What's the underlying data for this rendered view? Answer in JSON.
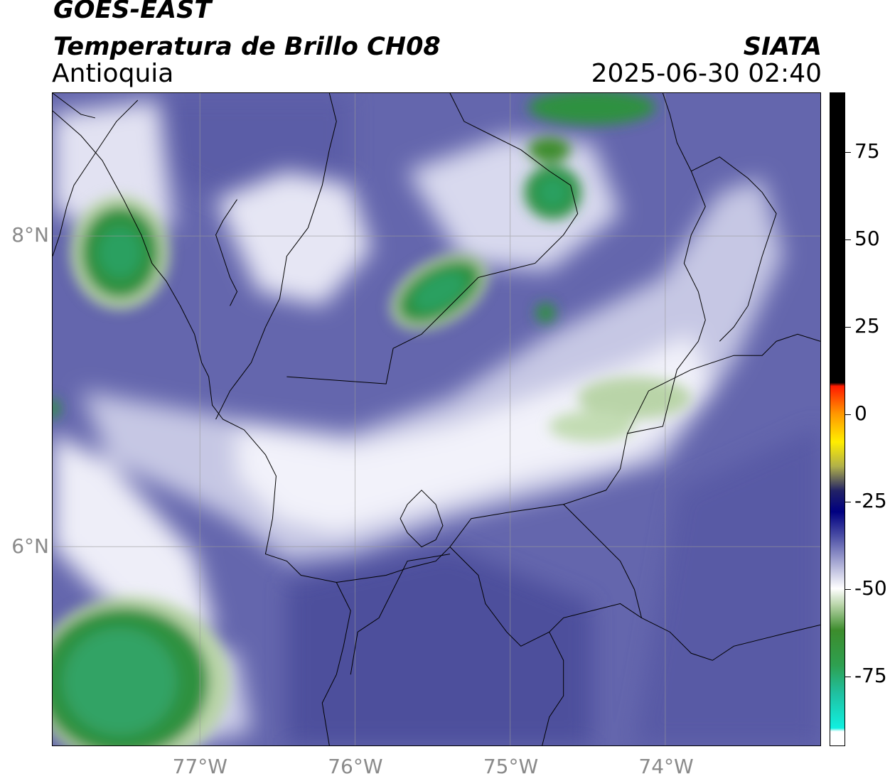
{
  "header": {
    "satellite": "GOES-EAST",
    "product": "Temperatura de Brillo CH08",
    "region": "Antioquia",
    "organization": "SIATA",
    "datetime": "2025-06-30 02:40"
  },
  "map": {
    "lon_ticks": [
      {
        "lon": -77,
        "label": "77°W"
      },
      {
        "lon": -76,
        "label": "76°W"
      },
      {
        "lon": -75,
        "label": "75°W"
      },
      {
        "lon": -74,
        "label": "74°W"
      }
    ],
    "lat_ticks": [
      {
        "lat": 8,
        "label": "8°N"
      },
      {
        "lat": 6,
        "label": "6°N"
      }
    ],
    "lon_range": [
      -77.95,
      -73.0
    ],
    "lat_range": [
      8.92,
      4.72
    ],
    "gridlines": true,
    "background_color": "#6466ad",
    "cold_cloud_color": "#2e9140"
  },
  "colorbar": {
    "range": [
      -95,
      92
    ],
    "ticks": [
      {
        "value": 75,
        "label": "75"
      },
      {
        "value": 50,
        "label": "50"
      },
      {
        "value": 25,
        "label": "25"
      },
      {
        "value": 0,
        "label": "0"
      },
      {
        "value": -25,
        "label": "-25"
      },
      {
        "value": -50,
        "label": "-50"
      },
      {
        "value": -75,
        "label": "-75"
      }
    ],
    "stops": [
      {
        "value": 92,
        "color": "#000000"
      },
      {
        "value": 9,
        "color": "#000000"
      },
      {
        "value": 8,
        "color": "#ff1a00"
      },
      {
        "value": 0,
        "color": "#ff9900"
      },
      {
        "value": -8,
        "color": "#ffee00"
      },
      {
        "value": -15,
        "color": "#b0b04a"
      },
      {
        "value": -22,
        "color": "#222266"
      },
      {
        "value": -28,
        "color": "#000080"
      },
      {
        "value": -35,
        "color": "#4b4ea5"
      },
      {
        "value": -45,
        "color": "#c4c5e2"
      },
      {
        "value": -50,
        "color": "#ffffff"
      },
      {
        "value": -55,
        "color": "#b4d2a4"
      },
      {
        "value": -62,
        "color": "#3c8c2c"
      },
      {
        "value": -72,
        "color": "#2ea050"
      },
      {
        "value": -80,
        "color": "#20c0a0"
      },
      {
        "value": -90,
        "color": "#10f0e0"
      },
      {
        "value": -91,
        "color": "#ffffff"
      },
      {
        "value": -95,
        "color": "#ffffff"
      }
    ]
  }
}
